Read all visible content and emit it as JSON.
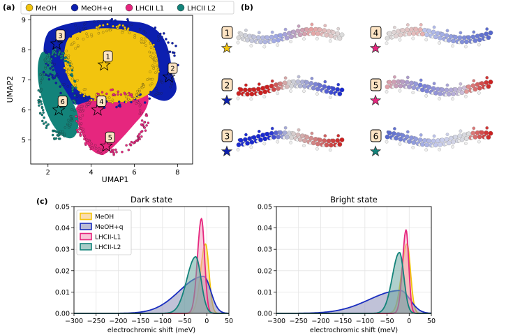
{
  "panels": {
    "a": {
      "label": "(a)"
    },
    "b": {
      "label": "(b)"
    },
    "c": {
      "label": "(c)"
    }
  },
  "umap": {
    "xlabel": "UMAP1",
    "ylabel": "UMAP2",
    "xticks": [
      "2",
      "4",
      "6",
      "8"
    ],
    "yticks": [
      "5",
      "6",
      "7",
      "8",
      "9"
    ],
    "legend": [
      {
        "name": "MeOH",
        "color": "#f2c40e"
      },
      {
        "name": "MeOH+q",
        "color": "#0c1fb0"
      },
      {
        "name": "LHCII L1",
        "color": "#e6267e"
      },
      {
        "name": "LHCII L2",
        "color": "#13837a"
      }
    ],
    "markers": [
      {
        "num": "1",
        "x": 4.6,
        "y": 7.5
      },
      {
        "num": "2",
        "x": 7.6,
        "y": 7.1
      },
      {
        "num": "3",
        "x": 2.4,
        "y": 8.2
      },
      {
        "num": "4",
        "x": 4.3,
        "y": 6.0
      },
      {
        "num": "5",
        "x": 4.7,
        "y": 4.8
      },
      {
        "num": "6",
        "x": 2.5,
        "y": 6.0
      }
    ]
  },
  "structures": [
    {
      "num": "1",
      "star_color": "#f2c40e"
    },
    {
      "num": "2",
      "star_color": "#0c1fb0"
    },
    {
      "num": "3",
      "star_color": "#0c1fb0"
    },
    {
      "num": "4",
      "star_color": "#e6267e"
    },
    {
      "num": "5",
      "star_color": "#e6267e"
    },
    {
      "num": "6",
      "star_color": "#13837a"
    }
  ],
  "chart_data": [
    {
      "type": "area",
      "title": "Dark state",
      "xlabel": "electrochromic shift (meV)",
      "ylabel": "",
      "xlim": [
        -300,
        50
      ],
      "ylim": [
        0,
        0.05
      ],
      "xticks": [
        "−300",
        "−250",
        "−200",
        "−150",
        "−100",
        "−50",
        "0",
        "50"
      ],
      "yticks": [
        "0.00",
        "0.01",
        "0.02",
        "0.03",
        "0.04",
        "0.05"
      ],
      "legend": [
        "MeOH",
        "MeOH+q",
        "LHCII-L1",
        "LHCII-L2"
      ],
      "series": [
        {
          "name": "MeOH",
          "color": "#f2c40e",
          "fill": "#f7c77e",
          "peak_x": -3,
          "peak_y": 0.0325,
          "sigma_left": 11,
          "sigma_right": 8
        },
        {
          "name": "MeOH+q",
          "color": "#1a2ec0",
          "fill": "#8d8fb8",
          "peak_x": -7,
          "peak_y": 0.0173,
          "sigma_left": 55,
          "sigma_right": 16
        },
        {
          "name": "LHCII-L1",
          "color": "#e6267e",
          "fill": "#f3a0bf",
          "peak_x": -12,
          "peak_y": 0.0443,
          "sigma_left": 9,
          "sigma_right": 7
        },
        {
          "name": "LHCII-L2",
          "color": "#13837a",
          "fill": "#6eaaa3",
          "peak_x": -25,
          "peak_y": 0.0265,
          "sigma_left": 20,
          "sigma_right": 12
        }
      ]
    },
    {
      "type": "area",
      "title": "Bright state",
      "xlabel": "electrochromic shift (meV)",
      "ylabel": "",
      "xlim": [
        -300,
        50
      ],
      "ylim": [
        0,
        0.05
      ],
      "xticks": [
        "−300",
        "−250",
        "−200",
        "−150",
        "−100",
        "−50",
        "0",
        "50"
      ],
      "yticks": [
        "0.00",
        "0.01",
        "0.02",
        "0.03",
        "0.04",
        "0.05"
      ],
      "series": [
        {
          "name": "MeOH",
          "color": "#f2c40e",
          "fill": "#f7c77e",
          "peak_x": -5,
          "peak_y": 0.0325,
          "sigma_left": 12,
          "sigma_right": 8
        },
        {
          "name": "MeOH+q",
          "color": "#1a2ec0",
          "fill": "#8d8fb8",
          "peak_x": -20,
          "peak_y": 0.0107,
          "sigma_left": 70,
          "sigma_right": 22
        },
        {
          "name": "LHCII-L1",
          "color": "#e6267e",
          "fill": "#f3a0bf",
          "peak_x": -7,
          "peak_y": 0.039,
          "sigma_left": 8,
          "sigma_right": 6
        },
        {
          "name": "LHCII-L2",
          "color": "#13837a",
          "fill": "#6eaaa3",
          "peak_x": -22,
          "peak_y": 0.0285,
          "sigma_left": 16,
          "sigma_right": 10
        }
      ]
    }
  ]
}
